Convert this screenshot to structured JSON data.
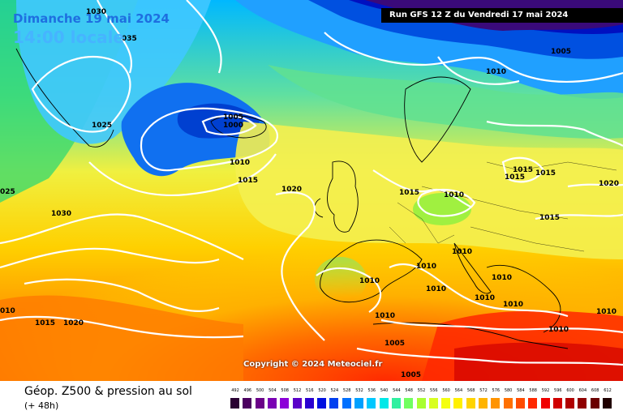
{
  "header": {
    "date": "Dimanche 19 mai 2024",
    "time": "14:00 locale",
    "run": "Run GFS 12 Z du Vendredi 17 mai 2024"
  },
  "map": {
    "copyright": "Copyright © 2024 Meteociel.fr",
    "isobar_labels": [
      {
        "id": "1030-top",
        "text": "1030"
      },
      {
        "id": "1035",
        "text": "035"
      },
      {
        "id": "1025-greenland",
        "text": "1025"
      },
      {
        "id": "1005-low",
        "text": "1005"
      },
      {
        "id": "1000",
        "text": "1000"
      },
      {
        "id": "1010-icelandic",
        "text": "1010"
      },
      {
        "id": "1015-icelandic",
        "text": "1015"
      },
      {
        "id": "1020-atlantic",
        "text": "1020"
      },
      {
        "id": "1025-left",
        "text": "025"
      },
      {
        "id": "1030-azores",
        "text": "1030"
      },
      {
        "id": "1010-left",
        "text": "010"
      },
      {
        "id": "1015-south",
        "text": "1015"
      },
      {
        "id": "1020-south",
        "text": "1020"
      },
      {
        "id": "1005-north",
        "text": "1005"
      },
      {
        "id": "1010-north",
        "text": "1010"
      },
      {
        "id": "1015-uk",
        "text": "1015"
      },
      {
        "id": "1010-germany",
        "text": "1010"
      },
      {
        "id": "1015-poland",
        "text": "1015"
      },
      {
        "id": "1015-baltic",
        "text": "1015"
      },
      {
        "id": "1015-russia",
        "text": "1015"
      },
      {
        "id": "1020-east",
        "text": "1020"
      },
      {
        "id": "1015-east",
        "text": "1015"
      },
      {
        "id": "1010-alps",
        "text": "1010"
      },
      {
        "id": "1010-france",
        "text": "1010"
      },
      {
        "id": "1010-spain",
        "text": "1010"
      },
      {
        "id": "1010-med",
        "text": "1010"
      },
      {
        "id": "1010-italy",
        "text": "1010"
      },
      {
        "id": "1010-balkans",
        "text": "1010"
      },
      {
        "id": "1010-balkans2",
        "text": "1010"
      },
      {
        "id": "1010-greece",
        "text": "1010"
      },
      {
        "id": "1010-turkey",
        "text": "1010"
      },
      {
        "id": "1010-algeria",
        "text": "1010"
      },
      {
        "id": "1005-africa",
        "text": "1005"
      },
      {
        "id": "1005-africa2",
        "text": "1005"
      }
    ]
  },
  "footer": {
    "title": "Géop. Z500 & pression au sol",
    "subtitle": "(+ 48h)"
  },
  "legend": {
    "values": [
      "492",
      "496",
      "500",
      "504",
      "508",
      "512",
      "516",
      "520",
      "524",
      "528",
      "532",
      "536",
      "540",
      "544",
      "548",
      "552",
      "556",
      "560",
      "564",
      "568",
      "572",
      "576",
      "580",
      "584",
      "588",
      "592",
      "596",
      "600",
      "604",
      "608",
      "612"
    ],
    "colors": [
      "#2a0032",
      "#4b0060",
      "#6a0088",
      "#7a00b4",
      "#8c00d8",
      "#5a00c8",
      "#2a00d0",
      "#0010e0",
      "#0040f0",
      "#0070ff",
      "#00a0ff",
      "#00c8ff",
      "#00e8e8",
      "#30f0a0",
      "#70ff60",
      "#a8ff30",
      "#d8ff20",
      "#f4ff10",
      "#fff000",
      "#ffd400",
      "#ffb400",
      "#ff9400",
      "#ff7000",
      "#ff4c00",
      "#ff2800",
      "#f00000",
      "#d00000",
      "#b00000",
      "#900000",
      "#6a0000",
      "#200000"
    ]
  }
}
